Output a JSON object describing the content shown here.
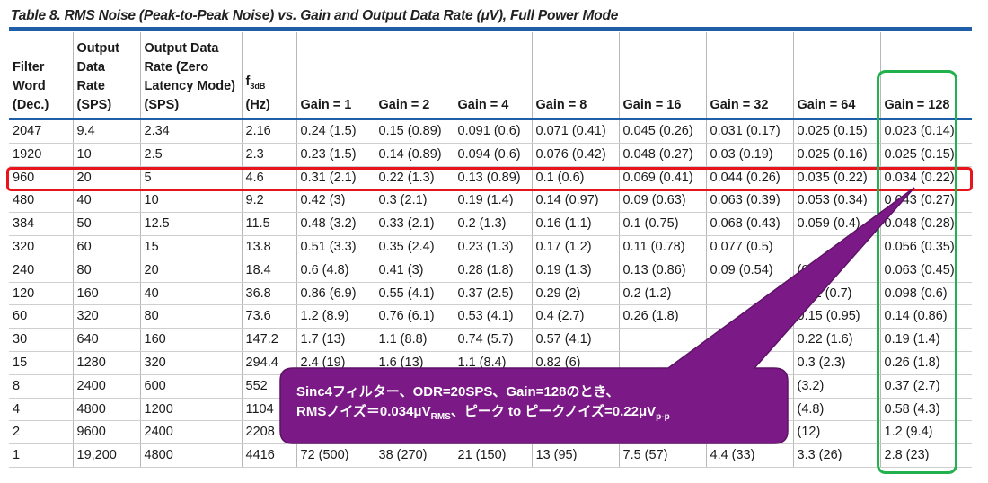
{
  "title": "Table 8. RMS Noise (Peak-to-Peak Noise) vs. Gain and Output Data Rate (μV), Full Power Mode",
  "headers": {
    "filter_word": [
      "Filter",
      "Word",
      "(Dec.)"
    ],
    "odr": [
      "Output",
      "Data",
      "Rate",
      "(SPS)"
    ],
    "odr_zero": [
      "Output Data",
      "Rate (Zero",
      "Latency Mode)",
      "(SPS)"
    ],
    "f3db_main": "f",
    "f3db_sub": "3dB",
    "f3db_unit": "(Hz)",
    "gains": [
      "Gain = 1",
      "Gain = 2",
      "Gain = 4",
      "Gain = 8",
      "Gain = 16",
      "Gain = 32",
      "Gain = 64",
      "Gain = 128"
    ]
  },
  "rows": [
    [
      "2047",
      "9.4",
      "2.34",
      "2.16",
      "0.24 (1.5)",
      "0.15 (0.89)",
      "0.091 (0.6)",
      "0.071 (0.41)",
      "0.045 (0.26)",
      "0.031 (0.17)",
      "0.025 (0.15)",
      "0.023 (0.14)"
    ],
    [
      "1920",
      "10",
      "2.5",
      "2.3",
      "0.23 (1.5)",
      "0.14 (0.89)",
      "0.094 (0.6)",
      "0.076 (0.42)",
      "0.048 (0.27)",
      "0.03 (0.19)",
      "0.025 (0.16)",
      "0.025 (0.15)"
    ],
    [
      "960",
      "20",
      "5",
      "4.6",
      "0.31 (2.1)",
      "0.22 (1.3)",
      "0.13 (0.89)",
      "0.1 (0.6)",
      "0.069 (0.41)",
      "0.044 (0.26)",
      "0.035 (0.22)",
      "0.034 (0.22)"
    ],
    [
      "480",
      "40",
      "10",
      "9.2",
      "0.42 (3)",
      "0.3 (2.1)",
      "0.19 (1.4)",
      "0.14 (0.97)",
      "0.09 (0.63)",
      "0.063 (0.39)",
      "0.053 (0.34)",
      "0.043 (0.27)"
    ],
    [
      "384",
      "50",
      "12.5",
      "11.5",
      "0.48 (3.2)",
      "0.33 (2.1)",
      "0.2 (1.3)",
      "0.16 (1.1)",
      "0.1 (0.75)",
      "0.068 (0.43)",
      "0.059 (0.4)",
      "0.048 (0.28)"
    ],
    [
      "320",
      "60",
      "15",
      "13.8",
      "0.51 (3.3)",
      "0.35 (2.4)",
      "0.23 (1.3)",
      "0.17 (1.2)",
      "0.11 (0.78)",
      "0.077 (0.5)",
      "",
      "0.056 (0.35)"
    ],
    [
      "240",
      "80",
      "20",
      "18.4",
      "0.6 (4.8)",
      "0.41 (3)",
      "0.28 (1.8)",
      "0.19 (1.3)",
      "0.13 (0.86)",
      "0.09 (0.54)",
      "(0.48)",
      "0.063 (0.45)"
    ],
    [
      "120",
      "160",
      "40",
      "36.8",
      "0.86 (6.9)",
      "0.55 (4.1)",
      "0.37 (2.5)",
      "0.29 (2)",
      "0.2 (1.2)",
      "",
      "0.11 (0.7)",
      "0.098 (0.6)"
    ],
    [
      "60",
      "320",
      "80",
      "73.6",
      "1.2 (8.9)",
      "0.76 (6.1)",
      "0.53 (4.1)",
      "0.4 (2.7)",
      "0.26 (1.8)",
      "",
      "0.15 (0.95)",
      "0.14 (0.86)"
    ],
    [
      "30",
      "640",
      "160",
      "147.2",
      "1.7 (13)",
      "1.1 (8.8)",
      "0.74 (5.7)",
      "0.57 (4.1)",
      "",
      "",
      "0.22 (1.6)",
      "0.19 (1.4)"
    ],
    [
      "15",
      "1280",
      "320",
      "294.4",
      "2.4 (19)",
      "1.6 (13)",
      "1.1 (8.4)",
      "0.82 (6)",
      "",
      "(2.5)",
      "0.3 (2.3)",
      "0.26 (1.8)"
    ],
    [
      "8",
      "2400",
      "600",
      "552",
      "",
      "",
      "",
      "",
      "",
      "",
      "(3.2)",
      "0.37 (2.7)"
    ],
    [
      "4",
      "4800",
      "1200",
      "1104",
      "",
      "",
      "",
      "",
      "",
      "",
      "(4.8)",
      "0.58 (4.3)"
    ],
    [
      "2",
      "9600",
      "2400",
      "2208",
      "",
      "",
      "",
      "",
      "",
      "",
      "(12)",
      "1.2 (9.4)"
    ],
    [
      "1",
      "19,200",
      "4800",
      "4416",
      "72 (500)",
      "38 (270)",
      "21 (150)",
      "13 (95)",
      "7.5 (57)",
      "4.4 (33)",
      "3.3 (26)",
      "2.8 (23)"
    ]
  ],
  "callout": {
    "line1": "Sinc4フィルター、ODR=20SPS、Gain=128のとき、",
    "line2_prefix": "RMSノイズ＝0.034μV",
    "line2_sub1": "RMS",
    "line2_mid": "、ピーク to ピークノイズ=0.22μV",
    "line2_sub2": "p-p"
  },
  "colors": {
    "rule_blue": "#1f5fa8",
    "highlight_row": "#e8131b",
    "highlight_col": "#22b14c",
    "callout_fill": "#7b1a86"
  }
}
